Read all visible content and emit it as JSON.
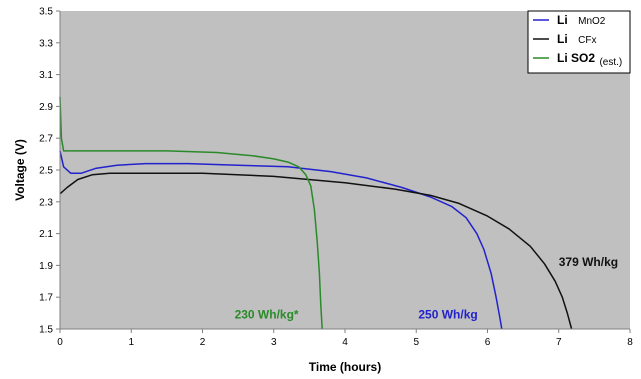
{
  "chart_data": {
    "type": "line",
    "xlabel": "Time (hours)",
    "ylabel": "Voltage (V)",
    "xlim": [
      0,
      8
    ],
    "ylim": [
      1.5,
      3.5
    ],
    "x_ticks": [
      "0",
      "1",
      "2",
      "3",
      "4",
      "5",
      "6",
      "7",
      "8"
    ],
    "y_ticks": [
      "1.5",
      "1.7",
      "1.9",
      "2.1",
      "2.3",
      "2.5",
      "2.7",
      "2.9",
      "3.1",
      "3.3",
      "3.5"
    ],
    "grid": false,
    "background": "#c0c0c0",
    "legend": {
      "placement": "top-right",
      "entries": [
        {
          "main": "Li",
          "sub": "MnO2",
          "color": "#2222cc"
        },
        {
          "main": "Li",
          "sub": "CFx",
          "color": "#111111"
        },
        {
          "main": "Li SO2",
          "sub": "(est.)",
          "color": "#2a8a2a"
        }
      ]
    },
    "series": [
      {
        "key": "mno2",
        "color": "#2222cc",
        "points": [
          [
            0,
            2.62
          ],
          [
            0.05,
            2.52
          ],
          [
            0.15,
            2.48
          ],
          [
            0.3,
            2.48
          ],
          [
            0.5,
            2.51
          ],
          [
            0.8,
            2.53
          ],
          [
            1.2,
            2.54
          ],
          [
            1.8,
            2.54
          ],
          [
            2.5,
            2.53
          ],
          [
            3.2,
            2.52
          ],
          [
            3.8,
            2.49
          ],
          [
            4.3,
            2.45
          ],
          [
            4.8,
            2.39
          ],
          [
            5.2,
            2.33
          ],
          [
            5.5,
            2.27
          ],
          [
            5.7,
            2.2
          ],
          [
            5.85,
            2.1
          ],
          [
            5.95,
            2.0
          ],
          [
            6.05,
            1.85
          ],
          [
            6.12,
            1.7
          ],
          [
            6.17,
            1.58
          ],
          [
            6.2,
            1.5
          ]
        ]
      },
      {
        "key": "cfx",
        "color": "#111111",
        "points": [
          [
            0,
            2.35
          ],
          [
            0.1,
            2.39
          ],
          [
            0.25,
            2.44
          ],
          [
            0.45,
            2.47
          ],
          [
            0.7,
            2.48
          ],
          [
            1.0,
            2.48
          ],
          [
            2.0,
            2.48
          ],
          [
            3.0,
            2.46
          ],
          [
            4.0,
            2.42
          ],
          [
            4.7,
            2.38
          ],
          [
            5.2,
            2.34
          ],
          [
            5.6,
            2.29
          ],
          [
            6.0,
            2.21
          ],
          [
            6.3,
            2.13
          ],
          [
            6.6,
            2.02
          ],
          [
            6.8,
            1.91
          ],
          [
            6.95,
            1.8
          ],
          [
            7.05,
            1.7
          ],
          [
            7.12,
            1.6
          ],
          [
            7.18,
            1.5
          ]
        ]
      },
      {
        "key": "so2",
        "color": "#2a8a2a",
        "points": [
          [
            0,
            2.96
          ],
          [
            0.02,
            2.7
          ],
          [
            0.05,
            2.62
          ],
          [
            0.2,
            2.62
          ],
          [
            0.5,
            2.62
          ],
          [
            1.5,
            2.62
          ],
          [
            2.2,
            2.61
          ],
          [
            2.7,
            2.59
          ],
          [
            3.0,
            2.57
          ],
          [
            3.2,
            2.55
          ],
          [
            3.35,
            2.52
          ],
          [
            3.45,
            2.47
          ],
          [
            3.52,
            2.4
          ],
          [
            3.57,
            2.25
          ],
          [
            3.61,
            2.05
          ],
          [
            3.64,
            1.85
          ],
          [
            3.66,
            1.65
          ],
          [
            3.68,
            1.5
          ]
        ]
      }
    ],
    "annotations": [
      {
        "text": "379 Wh/kg",
        "x": 7.0,
        "y": 1.92,
        "color": "#111111"
      },
      {
        "text": "230 Wh/kg*",
        "x": 2.45,
        "y": 1.59,
        "color": "#2a8a2a"
      },
      {
        "text": "250 Wh/kg",
        "x": 5.03,
        "y": 1.59,
        "color": "#2222cc"
      }
    ]
  }
}
